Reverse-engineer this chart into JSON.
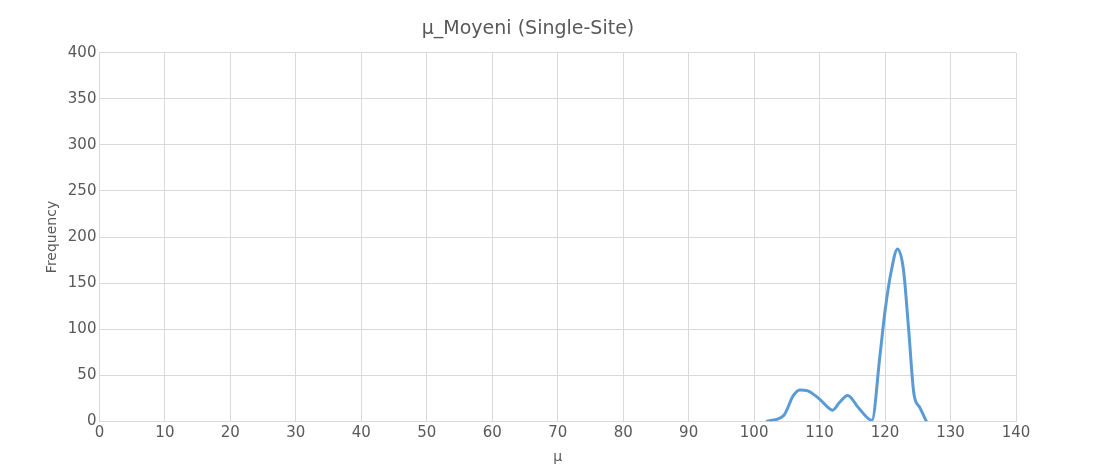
{
  "chart_data": {
    "type": "line",
    "title": "μ_Moyeni (Single-Site)",
    "xlabel": "μ",
    "ylabel": "Frequency",
    "x": [
      102,
      104.5,
      106,
      107,
      108.2,
      110,
      112,
      113,
      114.3,
      116,
      118,
      119.2,
      120,
      121,
      121.9,
      122.8,
      123.6,
      124.4,
      125.3,
      126.3
    ],
    "series": [
      {
        "color": "#5b9bd5",
        "values": [
          0,
          6,
          28,
          34,
          33,
          24,
          12,
          20,
          28,
          14,
          1,
          70,
          120,
          165,
          187,
          165,
          100,
          30,
          15,
          0
        ]
      }
    ],
    "xlim": [
      0,
      140
    ],
    "xticks": [
      0,
      10,
      20,
      30,
      40,
      50,
      60,
      70,
      80,
      90,
      100,
      110,
      120,
      130,
      140
    ],
    "ylim": [
      0,
      400
    ],
    "yticks": [
      0,
      50,
      100,
      150,
      200,
      250,
      300,
      350,
      400
    ],
    "grid": true,
    "legend": false,
    "marker": "none",
    "line_style": "solid"
  }
}
